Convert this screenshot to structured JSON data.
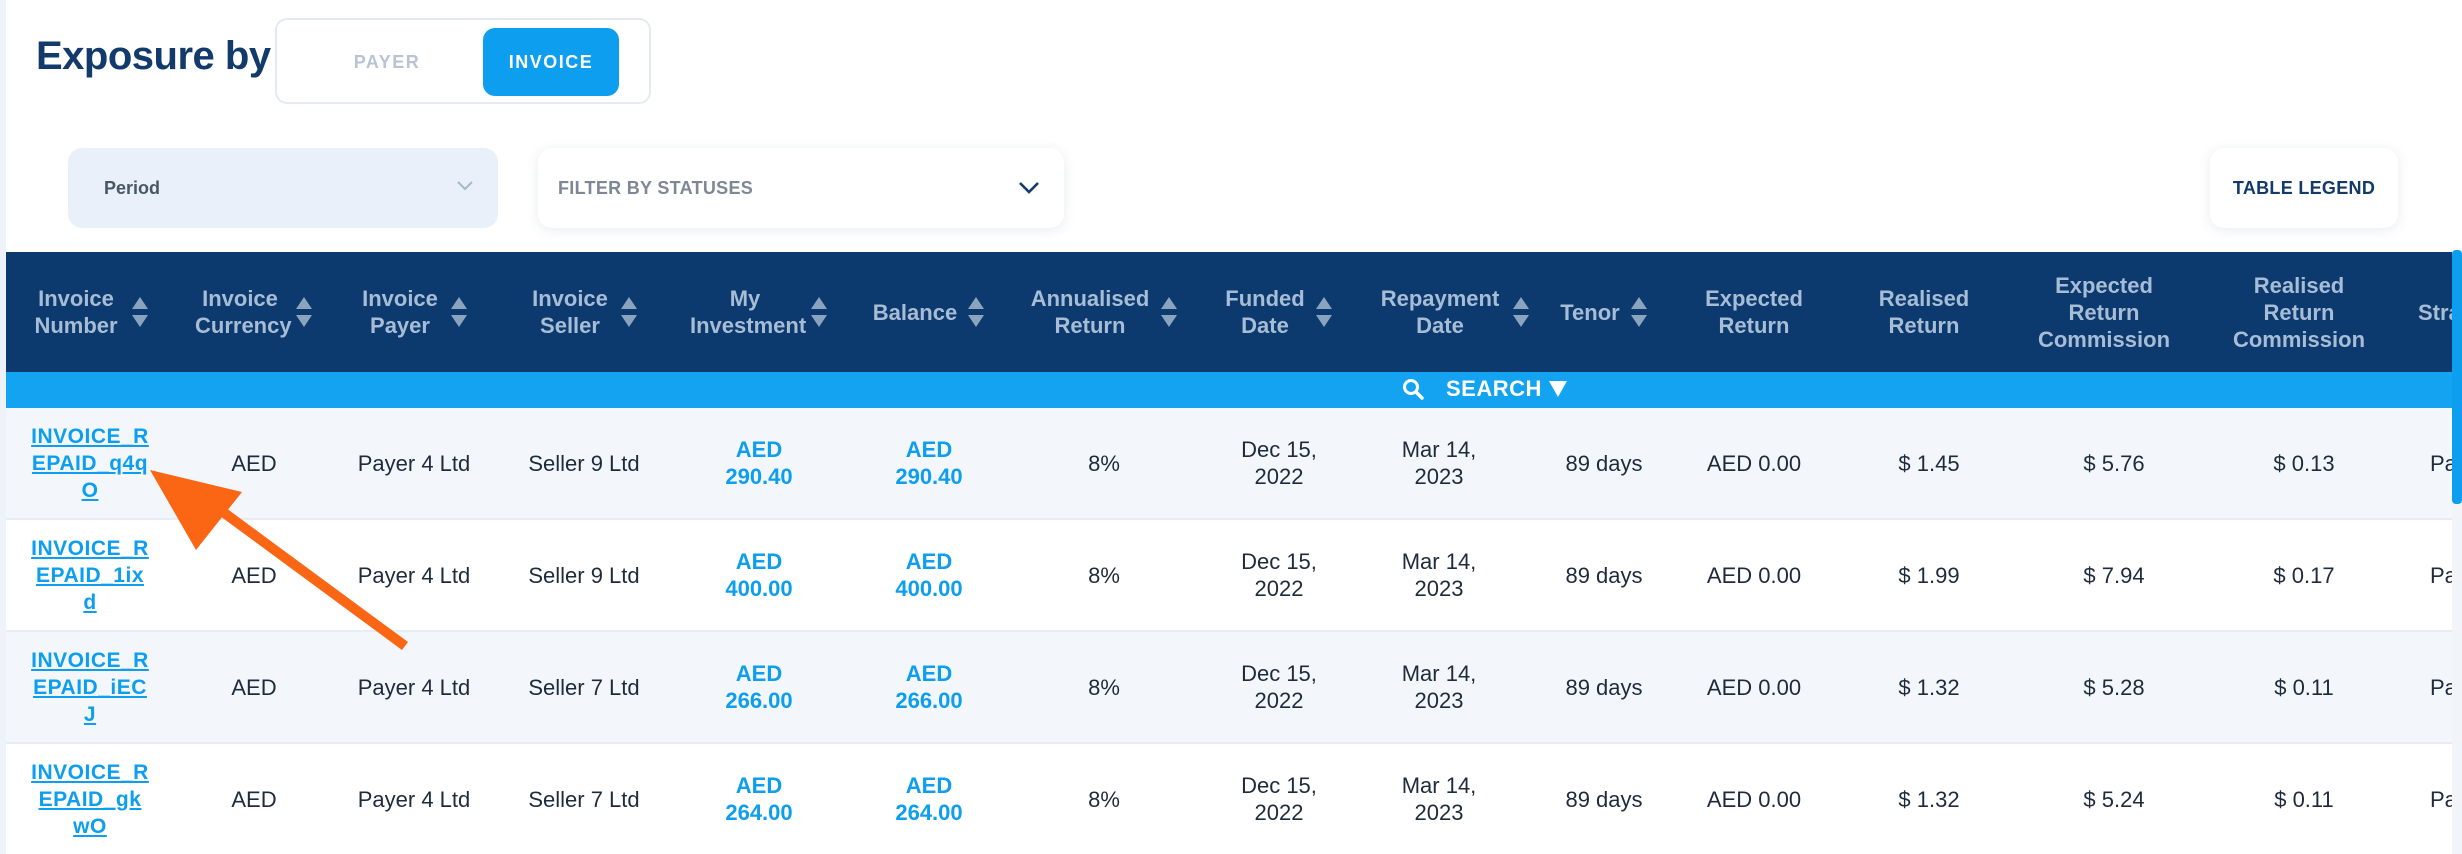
{
  "header": {
    "title": "Exposure by",
    "toggle": {
      "payer": "PAYER",
      "invoice": "INVOICE",
      "selected": "INVOICE"
    }
  },
  "filters": {
    "period_label": "Period",
    "status_label": "FILTER BY STATUSES",
    "legend_button": "TABLE LEGEND"
  },
  "table": {
    "columns": [
      "Invoice Number",
      "Invoice Currency",
      "Invoice Payer",
      "Invoice Seller",
      "My Investment",
      "Balance",
      "Annualised Return",
      "Funded Date",
      "Repayment Date",
      "Tenor",
      "Expected Return",
      "Realised Return",
      "Expected Return Commission",
      "Realised Return Commission",
      "Stra"
    ],
    "search_label": "SEARCH",
    "rows": [
      {
        "invoice_number": "INVOICE_REPAID_q4qO",
        "inv_l1": "INVOICE_R",
        "inv_l2": "EPAID_q4q",
        "inv_l3": "O",
        "currency": "AED",
        "payer": "Payer 4 Ltd",
        "seller": "Seller 9 Ltd",
        "investment": "AED 290.40",
        "inv_cur": "AED",
        "inv_amt": "290.40",
        "bal_cur": "AED",
        "bal_amt": "290.40",
        "annualised": "8%",
        "funded_1": "Dec 15,",
        "funded_2": "2022",
        "repay_1": "Mar 14,",
        "repay_2": "2023",
        "tenor": "89 days",
        "expected": "AED 0.00",
        "realised": "$ 1.45",
        "exp_comm": "$ 5.76",
        "real_comm": "$ 0.13",
        "strategy": "Pa"
      },
      {
        "invoice_number": "INVOICE_REPAID_1ixd",
        "inv_l1": "INVOICE_R",
        "inv_l2": "EPAID_1ix",
        "inv_l3": "d",
        "currency": "AED",
        "payer": "Payer 4 Ltd",
        "seller": "Seller 9 Ltd",
        "inv_cur": "AED",
        "inv_amt": "400.00",
        "bal_cur": "AED",
        "bal_amt": "400.00",
        "annualised": "8%",
        "funded_1": "Dec 15,",
        "funded_2": "2022",
        "repay_1": "Mar 14,",
        "repay_2": "2023",
        "tenor": "89 days",
        "expected": "AED 0.00",
        "realised": "$ 1.99",
        "exp_comm": "$ 7.94",
        "real_comm": "$ 0.17",
        "strategy": "Pa"
      },
      {
        "invoice_number": "INVOICE_REPAID_iECJ",
        "inv_l1": "INVOICE_R",
        "inv_l2": "EPAID_iEC",
        "inv_l3": "J",
        "currency": "AED",
        "payer": "Payer 4 Ltd",
        "seller": "Seller 7 Ltd",
        "inv_cur": "AED",
        "inv_amt": "266.00",
        "bal_cur": "AED",
        "bal_amt": "266.00",
        "annualised": "8%",
        "funded_1": "Dec 15,",
        "funded_2": "2022",
        "repay_1": "Mar 14,",
        "repay_2": "2023",
        "tenor": "89 days",
        "expected": "AED 0.00",
        "realised": "$ 1.32",
        "exp_comm": "$ 5.28",
        "real_comm": "$ 0.11",
        "strategy": "Pa"
      },
      {
        "invoice_number": "INVOICE_REPAID_gkwO",
        "inv_l1": "INVOICE_R",
        "inv_l2": "EPAID_gk",
        "inv_l3": "wO",
        "currency": "AED",
        "payer": "Payer 4 Ltd",
        "seller": "Seller 7 Ltd",
        "inv_cur": "AED",
        "inv_amt": "264.00",
        "bal_cur": "AED",
        "bal_amt": "264.00",
        "annualised": "8%",
        "funded_1": "Dec 15,",
        "funded_2": "2022",
        "repay_1": "Mar 14,",
        "repay_2": "2023",
        "tenor": "89 days",
        "expected": "AED 0.00",
        "realised": "$ 1.32",
        "exp_comm": "$ 5.24",
        "real_comm": "$ 0.11",
        "strategy": "Pa"
      }
    ]
  },
  "colors": {
    "header_bg": "#0c3a6e",
    "accent": "#0d9eef",
    "annotation_arrow": "#fa6614"
  },
  "annotation": {
    "icon": "arrow-pointer-icon"
  }
}
